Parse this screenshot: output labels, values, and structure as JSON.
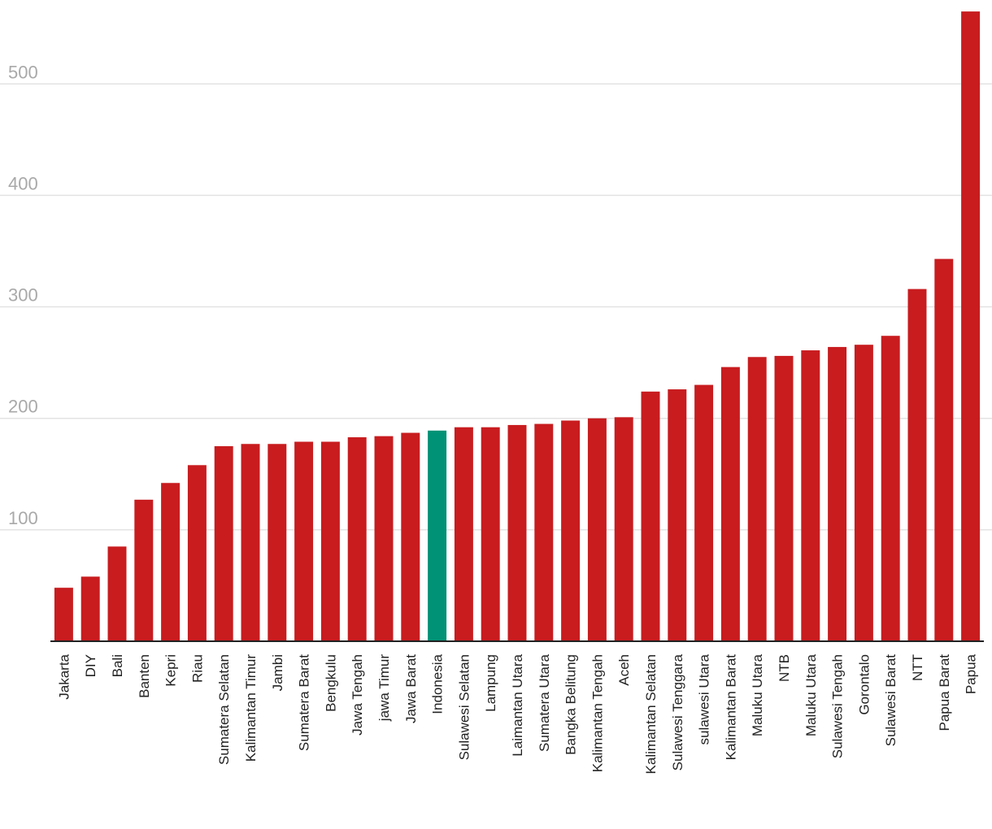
{
  "chart_data": {
    "type": "bar",
    "title": "",
    "xlabel": "",
    "ylabel": "",
    "ylim": [
      0,
      568
    ],
    "yticks": [
      100,
      200,
      300,
      400,
      500
    ],
    "grid": true,
    "colors": {
      "default": "#c81c1f",
      "highlight": "#009276"
    },
    "highlight_category": "Indonesia",
    "categories": [
      "Jakarta",
      "DIY",
      "Bali",
      "Banten",
      "Kepri",
      "Riau",
      "Sumatera Selatan",
      "Kalimantan Timur",
      "Jambi",
      "Sumatera Barat",
      "Bengkulu",
      "Jawa Tengah",
      "jawa Timur",
      "Jawa Barat",
      "Indonesia",
      "Sulawesi Selatan",
      "Lampung",
      "Laimantan Utara",
      "Sumatera Utara",
      "Bangka Belitung",
      "Kalimantan Tengah",
      "Aceh",
      "Kalimantan Selatan",
      "Sulawesi Tenggara",
      "sulawesi Utara",
      "Kalimantan Barat",
      "Maluku Utara",
      "NTB",
      "Maluku Utara",
      "Sulawesi Tengah",
      "Gorontalo",
      "Sulawesi Barat",
      "NTT",
      "Papua Barat",
      "Papua"
    ],
    "values": [
      48,
      58,
      85,
      127,
      142,
      158,
      175,
      177,
      177,
      179,
      179,
      183,
      184,
      187,
      189,
      192,
      192,
      194,
      195,
      198,
      200,
      201,
      224,
      226,
      230,
      246,
      255,
      256,
      261,
      264,
      266,
      274,
      316,
      343,
      565
    ]
  }
}
